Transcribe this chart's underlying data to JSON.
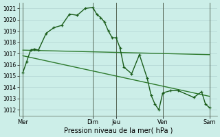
{
  "bg_color": "#cceee8",
  "grid_color": "#aacccc",
  "line_color_main": "#1a5c1a",
  "line_color_trend1": "#2d7a2d",
  "line_color_trend2": "#2d7a2d",
  "line_color_vline": "#556655",
  "xlabel": "Pression niveau de la mer( hPa )",
  "ylim": [
    1011.5,
    1021.5
  ],
  "yticks": [
    1012,
    1013,
    1014,
    1015,
    1016,
    1017,
    1018,
    1019,
    1020,
    1021
  ],
  "day_labels": [
    "Mer",
    "Dim",
    "Jeu",
    "Ven",
    "Sam"
  ],
  "day_positions": [
    0,
    18,
    24,
    36,
    48
  ],
  "xlim": [
    -1,
    50
  ],
  "series1_x": [
    0,
    1,
    2,
    3,
    4,
    6,
    8,
    10,
    12,
    14,
    16,
    18,
    19,
    20,
    21,
    22,
    23,
    24,
    25,
    26,
    28,
    30,
    32,
    33,
    34,
    35,
    36,
    38,
    40,
    44,
    46,
    47,
    48
  ],
  "series1_y": [
    1015.3,
    1016.3,
    1017.3,
    1017.4,
    1017.3,
    1018.8,
    1019.3,
    1019.5,
    1020.5,
    1020.4,
    1021.0,
    1021.1,
    1020.5,
    1020.2,
    1019.8,
    1019.0,
    1018.4,
    1018.4,
    1017.5,
    1015.8,
    1015.2,
    1016.9,
    1014.8,
    1013.3,
    1012.5,
    1012.0,
    1013.5,
    1013.7,
    1013.7,
    1013.1,
    1013.6,
    1012.5,
    1012.2
  ],
  "series2_x": [
    0,
    48
  ],
  "series2_y": [
    1017.3,
    1016.9
  ],
  "series3_x": [
    0,
    48
  ],
  "series3_y": [
    1016.8,
    1013.2
  ],
  "ytick_fontsize": 5.5,
  "xtick_fontsize": 6,
  "xlabel_fontsize": 7
}
